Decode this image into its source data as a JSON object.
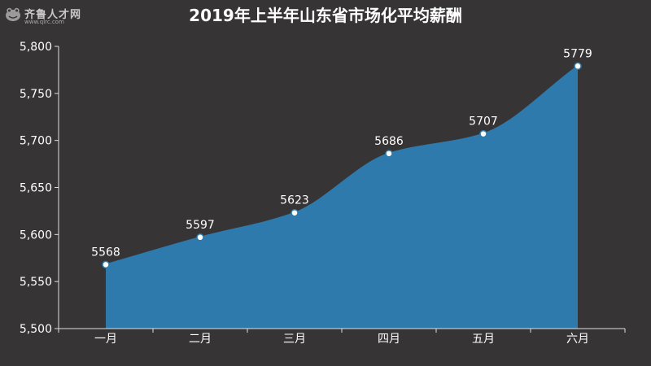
{
  "logo": {
    "name": "齐鲁人才网",
    "url": "www.qlrc.com"
  },
  "colors": {
    "background": "#363435",
    "area": "#2e7aad",
    "axis": "#e0e0e0",
    "text": "#ffffff",
    "marker_fill": "#ffffff",
    "marker_stroke": "#2e7aad"
  },
  "chart_data": {
    "type": "area",
    "title": "2019年上半年山东省市场化平均薪酬",
    "xlabel": "",
    "ylabel": "",
    "categories": [
      "一月",
      "二月",
      "三月",
      "四月",
      "五月",
      "六月"
    ],
    "values": [
      5568,
      5597,
      5623,
      5686,
      5707,
      5779
    ],
    "data_labels": [
      "5568",
      "5597",
      "5623",
      "5686",
      "5707",
      "5779"
    ],
    "ylim": [
      5500,
      5800
    ],
    "yticks": [
      5500,
      5550,
      5600,
      5650,
      5700,
      5750,
      5800
    ],
    "ytick_labels": [
      "5,500",
      "5,550",
      "5,600",
      "5,650",
      "5,700",
      "5,750",
      "5,800"
    ],
    "smooth": true,
    "grid": false,
    "legend": "none"
  }
}
